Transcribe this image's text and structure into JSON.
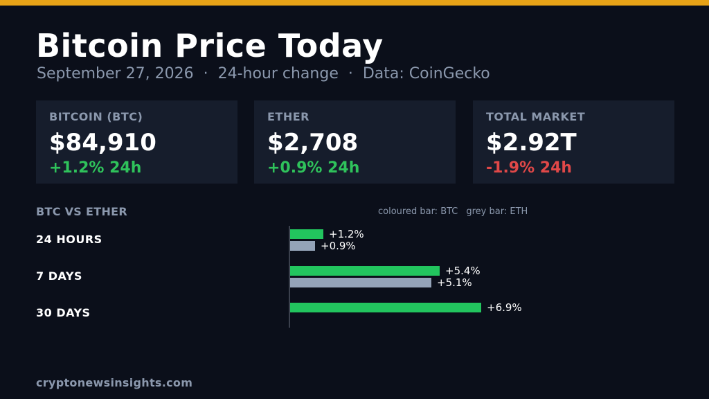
{
  "header": {
    "title": "Bitcoin Price Today",
    "date": "September 27, 2026",
    "period": "24-hour change",
    "source": "Data: CoinGecko",
    "separator": "·"
  },
  "cards": [
    {
      "label": "BITCOIN (BTC)",
      "value": "$84,910",
      "change": "+1.2% 24h",
      "direction": "up"
    },
    {
      "label": "ETHER",
      "value": "$2,708",
      "change": "+0.9% 24h",
      "direction": "up"
    },
    {
      "label": "TOTAL MARKET",
      "value": "$2.92T",
      "change": "-1.9% 24h",
      "direction": "down"
    }
  ],
  "chart_data": {
    "type": "bar",
    "orientation": "horizontal",
    "title": "BTC VS ETHER",
    "legend_text": [
      "coloured bar: BTC",
      "grey bar: ETH"
    ],
    "categories": [
      "24 HOURS",
      "7 DAYS",
      "30 DAYS"
    ],
    "series": [
      {
        "name": "BTC",
        "values": [
          1.2,
          5.4,
          6.9
        ],
        "labels": [
          "+1.2%",
          "+5.4%",
          "+6.9%"
        ],
        "color": "#22c55e"
      },
      {
        "name": "ETH",
        "values": [
          0.9,
          5.1,
          null
        ],
        "labels": [
          "+0.9%",
          "+5.1%",
          ""
        ],
        "color": "#94a3b8"
      }
    ],
    "xlim": [
      0,
      8
    ]
  },
  "colors": {
    "accent": "#e8a317",
    "positive": "#2fc25b",
    "negative": "#e04848"
  },
  "footer": "cryptonewsinsights.com"
}
